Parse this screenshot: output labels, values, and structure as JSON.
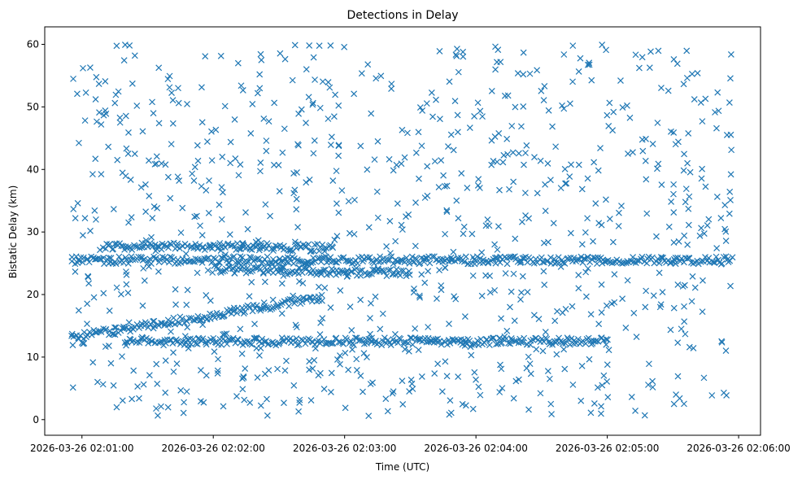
{
  "chart_data": {
    "type": "scatter",
    "title": "Detections in Delay",
    "xlabel": "Time (UTC)",
    "ylabel": "Bistatic Delay (km)",
    "marker": "x",
    "color": "#1f77b4",
    "grid": false,
    "legend": "none",
    "xlim": [
      "2026-03-26 02:00:43",
      "2026-03-26 02:06:10"
    ],
    "ylim": [
      -2.5,
      62.8
    ],
    "x_ticks": [
      "2026-03-26 02:01:00",
      "2026-03-26 02:02:00",
      "2026-03-26 02:03:00",
      "2026-03-26 02:04:00",
      "2026-03-26 02:05:00",
      "2026-03-26 02:06:00"
    ],
    "y_ticks": [
      0,
      10,
      20,
      30,
      40,
      50,
      60
    ],
    "series": [
      {
        "x_range": [
          "2026-03-26 02:00:55",
          "2026-03-26 02:05:57"
        ],
        "tracks": [
          {
            "start": [
              "2026-03-26 02:00:55",
              13.2
            ],
            "end": [
              "2026-03-26 02:02:50",
              19.5
            ]
          },
          {
            "start": [
              "2026-03-26 02:00:55",
              25.5
            ],
            "end": [
              "2026-03-26 02:05:57",
              25.5
            ]
          },
          {
            "start": [
              "2026-03-26 02:01:10",
              27.8
            ],
            "end": [
              "2026-03-26 02:02:55",
              27.5
            ]
          },
          {
            "start": [
              "2026-03-26 02:01:20",
              12.5
            ],
            "end": [
              "2026-03-26 02:05:00",
              12.5
            ]
          },
          {
            "start": [
              "2026-03-26 02:02:00",
              24.0
            ],
            "end": [
              "2026-03-26 02:03:30",
              23.5
            ]
          }
        ],
        "noise_y_range": [
          0.5,
          60
        ]
      }
    ]
  }
}
